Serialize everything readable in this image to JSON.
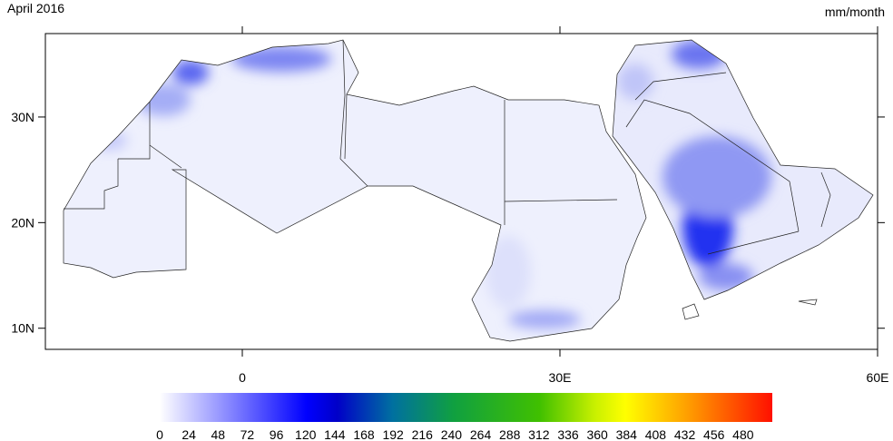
{
  "title": "April 2016",
  "units": "mm/month",
  "map": {
    "lonlim": [
      -18.6,
      60
    ],
    "latlim": [
      8,
      37.9
    ],
    "lonticks": [
      0,
      {
        "value": 30,
        "label": "30E"
      },
      {
        "value": 60,
        "label": "60E"
      }
    ],
    "latticks": [
      {
        "value": 10,
        "label": "10N"
      },
      {
        "value": 20,
        "label": "20N"
      },
      {
        "value": 30,
        "label": "30N"
      }
    ]
  },
  "colorbar": {
    "lim": [
      0,
      504
    ],
    "ticks": [
      0,
      24,
      48,
      72,
      96,
      120,
      144,
      168,
      192,
      216,
      240,
      264,
      288,
      312,
      336,
      360,
      384,
      408,
      432,
      456,
      480
    ]
  }
}
